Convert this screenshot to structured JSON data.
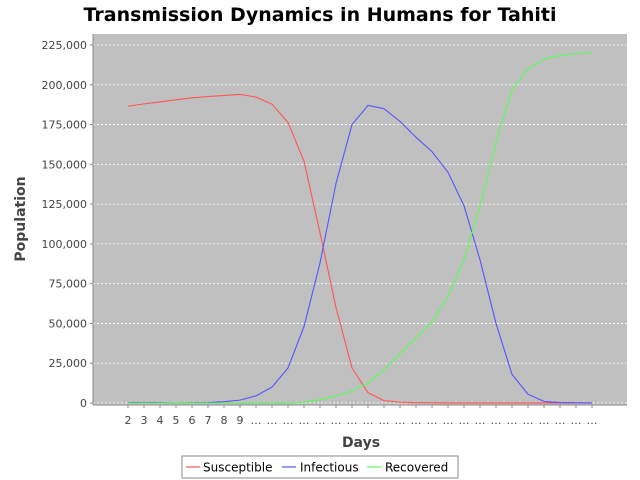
{
  "colors": {
    "plot_background": "#c0c0c0",
    "gridline": "#ffffff",
    "axis": "#888888",
    "susceptible": "#ff5555",
    "infectious": "#5555ff",
    "recovered": "#55ff55"
  },
  "chart_data": {
    "type": "line",
    "title": "Transmission Dynamics in Humans for Tahiti",
    "xlabel": "Days",
    "ylabel": "Population",
    "ylim": [
      0,
      225000
    ],
    "ytick_step": 25000,
    "ytick_labels": [
      "0",
      "25,000",
      "50,000",
      "75,000",
      "100,000",
      "125,000",
      "150,000",
      "175,000",
      "200,000",
      "225,000"
    ],
    "grid": "horizontal",
    "legend_position": "bottom",
    "categories": [
      "2",
      "3",
      "4",
      "5",
      "6",
      "7",
      "8",
      "9",
      "…",
      "…",
      "…",
      "…",
      "…",
      "…",
      "…",
      "…",
      "…",
      "…",
      "…",
      "…",
      "…",
      "…",
      "…",
      "…",
      "…",
      "…",
      "…",
      "…",
      "…",
      "…"
    ],
    "series": [
      {
        "name": "Susceptible",
        "values": [
          186500,
          188000,
          189200,
          190600,
          191800,
          192600,
          193300,
          193900,
          192300,
          187800,
          176300,
          152000,
          107000,
          60000,
          22000,
          6500,
          1500,
          500,
          200,
          100,
          50,
          50,
          50,
          50,
          50,
          50,
          50,
          50,
          50,
          50
        ]
      },
      {
        "name": "Infectious",
        "values": [
          200,
          300,
          200,
          0,
          100,
          300,
          800,
          1800,
          4500,
          10000,
          22000,
          48000,
          88000,
          138000,
          175000,
          187000,
          185000,
          177000,
          167000,
          158000,
          145000,
          124000,
          90000,
          50000,
          18000,
          5500,
          1000,
          300,
          100,
          50
        ]
      },
      {
        "name": "Recovered",
        "values": [
          0,
          0,
          0,
          0,
          0,
          0,
          0,
          0,
          0,
          0,
          0,
          500,
          2000,
          4500,
          7500,
          12500,
          21000,
          31000,
          41000,
          51000,
          67000,
          90000,
          124000,
          164000,
          197000,
          210000,
          216000,
          218500,
          219500,
          220500
        ]
      }
    ]
  }
}
